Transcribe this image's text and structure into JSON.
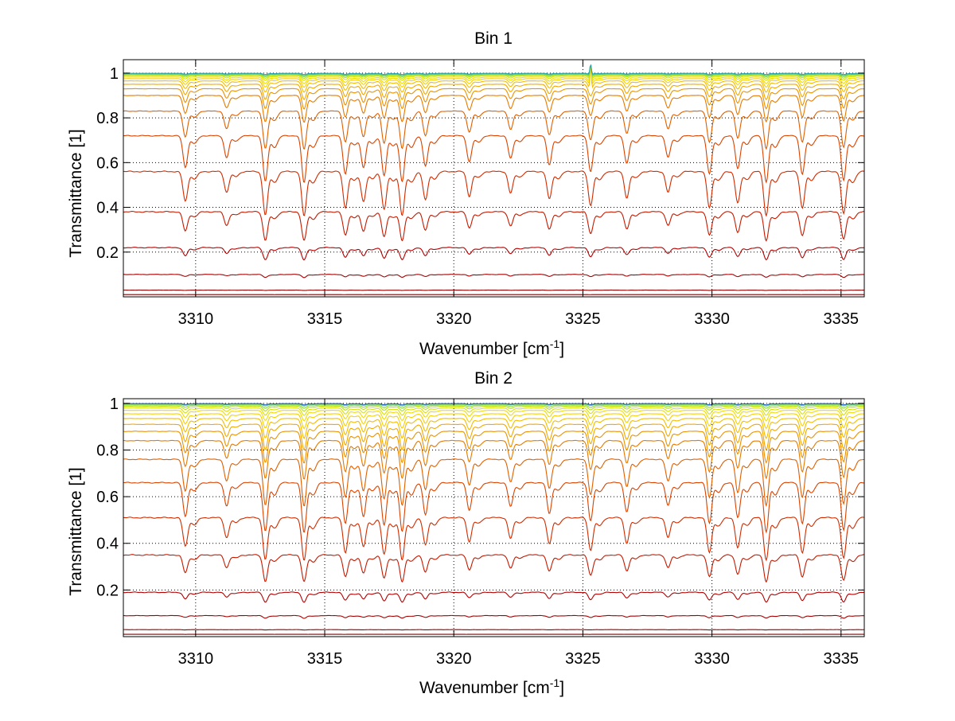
{
  "figure": {
    "background": "#ffffff"
  },
  "chart_data": [
    {
      "type": "line",
      "title": "Bin 1",
      "xlabel": "Wavenumber [cm",
      "xlabel_sup": "-1",
      "xlabel_close": "]",
      "ylabel": "Transmittance [1]",
      "xlim": [
        3307.2,
        3335.9
      ],
      "ylim": [
        0.0,
        1.06
      ],
      "xticks": [
        3310,
        3315,
        3320,
        3325,
        3330,
        3335
      ],
      "xtick_labels": [
        "3310",
        "3315",
        "3320",
        "3325",
        "3330",
        "3335"
      ],
      "yticks": [
        0.2,
        0.4,
        0.6,
        0.8,
        1.0
      ],
      "ytick_labels": [
        "0.2",
        "0.4",
        "0.6",
        "0.8",
        "1"
      ],
      "grid": true,
      "grid_style": "dotted",
      "series_baselines": [
        0.01,
        0.03,
        0.1,
        0.22,
        0.38,
        0.56,
        0.72,
        0.83,
        0.9,
        0.93,
        0.95,
        0.965,
        0.975,
        0.982,
        0.988,
        0.992,
        0.995,
        0.997,
        0.999
      ],
      "series_colors": [
        "#7f0000",
        "#8f0000",
        "#a50000",
        "#b40000",
        "#c41a00",
        "#d02c00",
        "#da4400",
        "#e06000",
        "#e67a00",
        "#ec9200",
        "#f0a800",
        "#f4bc00",
        "#f6d000",
        "#f0dc00",
        "#d8e200",
        "#b4e010",
        "#8ad83a",
        "#5ccb6a",
        "#2aa4b0"
      ],
      "absorption_lines": [
        3309.6,
        3311.2,
        3312.7,
        3314.2,
        3315.8,
        3316.5,
        3317.3,
        3318.0,
        3318.9,
        3320.6,
        3322.2,
        3323.7,
        3325.3,
        3326.7,
        3328.3,
        3329.9,
        3331.0,
        3332.1,
        3333.5,
        3335.1
      ],
      "spike": {
        "x": 3325.3,
        "y": 1.06
      }
    },
    {
      "type": "line",
      "title": "Bin 2",
      "xlabel": "Wavenumber [cm",
      "xlabel_sup": "-1",
      "xlabel_close": "]",
      "ylabel": "Transmittance [1]",
      "xlim": [
        3307.2,
        3335.9
      ],
      "ylim": [
        0.0,
        1.02
      ],
      "xticks": [
        3310,
        3315,
        3320,
        3325,
        3330,
        3335
      ],
      "xtick_labels": [
        "3310",
        "3315",
        "3320",
        "3325",
        "3330",
        "3335"
      ],
      "yticks": [
        0.2,
        0.4,
        0.6,
        0.8,
        1.0
      ],
      "ytick_labels": [
        "0.2",
        "0.4",
        "0.6",
        "0.8",
        "1"
      ],
      "grid": true,
      "grid_style": "dotted",
      "series_baselines": [
        0.01,
        0.03,
        0.09,
        0.19,
        0.35,
        0.51,
        0.66,
        0.76,
        0.84,
        0.88,
        0.91,
        0.935,
        0.955,
        0.97,
        0.98,
        0.988,
        0.993,
        0.997,
        0.999
      ],
      "series_colors": [
        "#7f0000",
        "#8f0000",
        "#a50000",
        "#b40000",
        "#c41a00",
        "#d02c00",
        "#da4400",
        "#e06000",
        "#e67a00",
        "#ec9200",
        "#f0a800",
        "#f4bc00",
        "#f6d000",
        "#f0dc00",
        "#d8e200",
        "#b4e010",
        "#8ad83a",
        "#5ccb6a",
        "#1c5fc0"
      ],
      "absorption_lines": [
        3309.6,
        3311.2,
        3312.7,
        3314.2,
        3315.8,
        3316.5,
        3317.3,
        3318.0,
        3318.9,
        3320.6,
        3322.2,
        3323.7,
        3325.3,
        3326.7,
        3328.3,
        3329.9,
        3331.0,
        3332.1,
        3333.5,
        3335.1
      ]
    }
  ]
}
